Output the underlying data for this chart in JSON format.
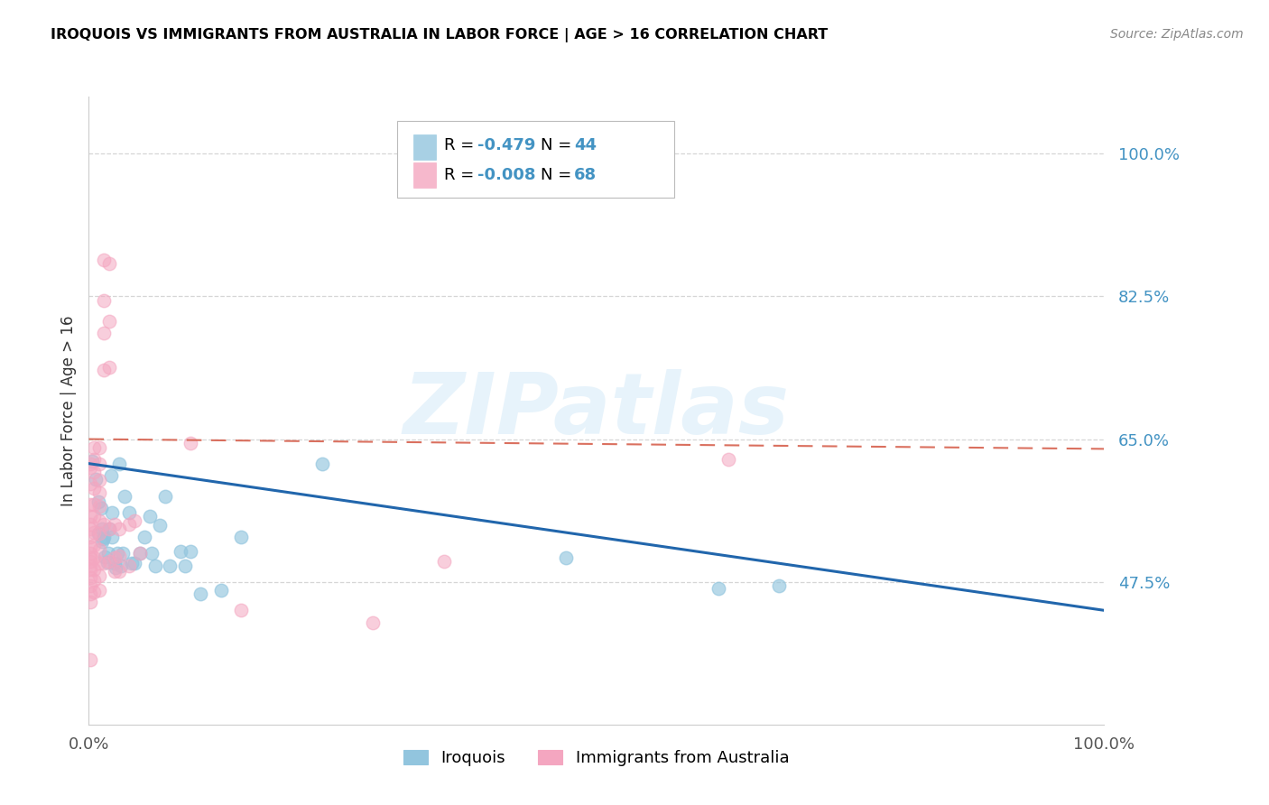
{
  "title": "IROQUOIS VS IMMIGRANTS FROM AUSTRALIA IN LABOR FORCE | AGE > 16 CORRELATION CHART",
  "source": "Source: ZipAtlas.com",
  "ylabel": "In Labor Force | Age > 16",
  "xlim": [
    0.0,
    1.0
  ],
  "ylim": [
    0.3,
    1.07
  ],
  "yticks": [
    0.475,
    0.65,
    0.825,
    1.0
  ],
  "ytick_labels": [
    "47.5%",
    "65.0%",
    "82.5%",
    "100.0%"
  ],
  "xtick_labels": [
    "0.0%",
    "100.0%"
  ],
  "watermark": "ZIPatlas",
  "legend_blue_r": "-0.479",
  "legend_blue_n": "44",
  "legend_pink_r": "-0.008",
  "legend_pink_n": "68",
  "blue_color": "#92c5de",
  "pink_color": "#f4a6c0",
  "blue_edge_color": "#92c5de",
  "pink_edge_color": "#f4a6c0",
  "blue_line_color": "#2166ac",
  "pink_line_color": "#d6604d",
  "text_blue_color": "#4393c3",
  "blue_scatter": [
    [
      0.003,
      0.623
    ],
    [
      0.007,
      0.601
    ],
    [
      0.009,
      0.573
    ],
    [
      0.009,
      0.534
    ],
    [
      0.012,
      0.565
    ],
    [
      0.013,
      0.54
    ],
    [
      0.013,
      0.524
    ],
    [
      0.014,
      0.528
    ],
    [
      0.015,
      0.53
    ],
    [
      0.016,
      0.506
    ],
    [
      0.018,
      0.499
    ],
    [
      0.019,
      0.51
    ],
    [
      0.02,
      0.54
    ],
    [
      0.022,
      0.605
    ],
    [
      0.023,
      0.56
    ],
    [
      0.023,
      0.53
    ],
    [
      0.025,
      0.498
    ],
    [
      0.026,
      0.492
    ],
    [
      0.028,
      0.51
    ],
    [
      0.03,
      0.62
    ],
    [
      0.032,
      0.495
    ],
    [
      0.033,
      0.51
    ],
    [
      0.035,
      0.58
    ],
    [
      0.04,
      0.56
    ],
    [
      0.042,
      0.498
    ],
    [
      0.045,
      0.498
    ],
    [
      0.05,
      0.51
    ],
    [
      0.055,
      0.53
    ],
    [
      0.06,
      0.555
    ],
    [
      0.062,
      0.51
    ],
    [
      0.065,
      0.495
    ],
    [
      0.07,
      0.544
    ],
    [
      0.075,
      0.58
    ],
    [
      0.08,
      0.495
    ],
    [
      0.09,
      0.512
    ],
    [
      0.095,
      0.495
    ],
    [
      0.1,
      0.512
    ],
    [
      0.11,
      0.46
    ],
    [
      0.13,
      0.465
    ],
    [
      0.15,
      0.53
    ],
    [
      0.23,
      0.62
    ],
    [
      0.47,
      0.505
    ],
    [
      0.62,
      0.467
    ],
    [
      0.68,
      0.47
    ]
  ],
  "pink_scatter": [
    [
      0.001,
      0.615
    ],
    [
      0.001,
      0.62
    ],
    [
      0.001,
      0.595
    ],
    [
      0.001,
      0.57
    ],
    [
      0.001,
      0.555
    ],
    [
      0.001,
      0.545
    ],
    [
      0.001,
      0.54
    ],
    [
      0.001,
      0.53
    ],
    [
      0.001,
      0.518
    ],
    [
      0.001,
      0.51
    ],
    [
      0.001,
      0.505
    ],
    [
      0.001,
      0.5
    ],
    [
      0.001,
      0.495
    ],
    [
      0.001,
      0.49
    ],
    [
      0.001,
      0.48
    ],
    [
      0.001,
      0.47
    ],
    [
      0.001,
      0.46
    ],
    [
      0.001,
      0.45
    ],
    [
      0.001,
      0.38
    ],
    [
      0.005,
      0.64
    ],
    [
      0.005,
      0.625
    ],
    [
      0.005,
      0.61
    ],
    [
      0.005,
      0.59
    ],
    [
      0.005,
      0.57
    ],
    [
      0.005,
      0.555
    ],
    [
      0.005,
      0.535
    ],
    [
      0.005,
      0.52
    ],
    [
      0.005,
      0.505
    ],
    [
      0.005,
      0.49
    ],
    [
      0.005,
      0.477
    ],
    [
      0.005,
      0.462
    ],
    [
      0.01,
      0.64
    ],
    [
      0.01,
      0.62
    ],
    [
      0.01,
      0.6
    ],
    [
      0.01,
      0.584
    ],
    [
      0.01,
      0.568
    ],
    [
      0.01,
      0.55
    ],
    [
      0.01,
      0.534
    ],
    [
      0.01,
      0.515
    ],
    [
      0.01,
      0.498
    ],
    [
      0.01,
      0.482
    ],
    [
      0.01,
      0.465
    ],
    [
      0.015,
      0.87
    ],
    [
      0.015,
      0.82
    ],
    [
      0.015,
      0.78
    ],
    [
      0.015,
      0.735
    ],
    [
      0.015,
      0.545
    ],
    [
      0.015,
      0.498
    ],
    [
      0.02,
      0.865
    ],
    [
      0.02,
      0.795
    ],
    [
      0.02,
      0.738
    ],
    [
      0.02,
      0.54
    ],
    [
      0.02,
      0.5
    ],
    [
      0.025,
      0.545
    ],
    [
      0.025,
      0.505
    ],
    [
      0.025,
      0.488
    ],
    [
      0.03,
      0.54
    ],
    [
      0.03,
      0.507
    ],
    [
      0.03,
      0.488
    ],
    [
      0.04,
      0.545
    ],
    [
      0.04,
      0.495
    ],
    [
      0.045,
      0.55
    ],
    [
      0.05,
      0.51
    ],
    [
      0.1,
      0.645
    ],
    [
      0.15,
      0.44
    ],
    [
      0.28,
      0.425
    ],
    [
      0.35,
      0.5
    ],
    [
      0.63,
      0.625
    ]
  ],
  "blue_line_x": [
    0.0,
    1.0
  ],
  "blue_line_y": [
    0.62,
    0.44
  ],
  "pink_line_x": [
    0.0,
    1.0
  ],
  "pink_line_y": [
    0.65,
    0.638
  ]
}
